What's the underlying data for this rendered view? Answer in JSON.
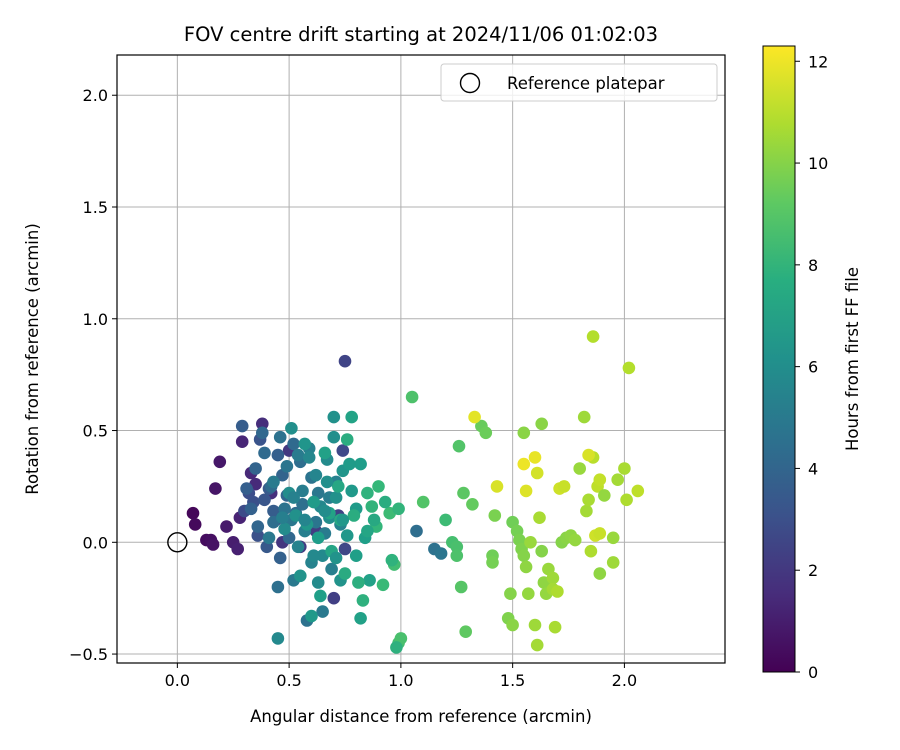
{
  "chart_data": {
    "type": "scatter",
    "title": "FOV centre drift starting at 2024/11/06 01:02:03",
    "xlabel": "Angular distance from reference (arcmin)",
    "ylabel": "Rotation from reference (arcmin)",
    "colorbar_label": "Hours from first FF file",
    "xlim": [
      -0.27,
      2.45
    ],
    "ylim": [
      -0.54,
      2.18
    ],
    "xticks": [
      "0.0",
      "0.5",
      "1.0",
      "1.5",
      "2.0"
    ],
    "yticks": [
      "−0.5",
      "0.0",
      "0.5",
      "1.0",
      "1.5",
      "2.0"
    ],
    "colorbar_range": [
      0,
      12.3
    ],
    "colorbar_ticks": [
      "0",
      "2",
      "4",
      "6",
      "8",
      "10",
      "12"
    ],
    "grid": true,
    "colormap": "viridis",
    "legend": {
      "placement": "top-right",
      "entries": [
        "Reference platepar"
      ]
    },
    "reference_point": {
      "x": 0.0,
      "y": 0.0
    },
    "points": [
      [
        0.07,
        0.13,
        0.2
      ],
      [
        0.08,
        0.08,
        0.3
      ],
      [
        0.13,
        0.01,
        0.4
      ],
      [
        0.15,
        0.01,
        0.5
      ],
      [
        0.16,
        -0.01,
        0.6
      ],
      [
        0.17,
        0.24,
        0.7
      ],
      [
        0.19,
        0.36,
        0.8
      ],
      [
        0.22,
        0.07,
        0.9
      ],
      [
        0.25,
        0.0,
        1.0
      ],
      [
        0.27,
        -0.03,
        1.1
      ],
      [
        0.28,
        0.11,
        1.2
      ],
      [
        0.29,
        0.45,
        1.3
      ],
      [
        0.33,
        0.31,
        1.4
      ],
      [
        0.35,
        0.26,
        1.5
      ],
      [
        0.38,
        0.53,
        1.6
      ],
      [
        0.42,
        0.22,
        1.7
      ],
      [
        0.44,
        0.1,
        1.8
      ],
      [
        0.47,
        0.0,
        1.9
      ],
      [
        0.5,
        0.41,
        2.0
      ],
      [
        0.55,
        -0.02,
        2.1
      ],
      [
        0.62,
        0.05,
        2.2
      ],
      [
        0.7,
        -0.25,
        2.3
      ],
      [
        0.72,
        0.12,
        2.4
      ],
      [
        0.75,
        0.81,
        2.5
      ],
      [
        0.75,
        -0.03,
        2.6
      ],
      [
        0.74,
        0.41,
        2.7
      ],
      [
        0.3,
        0.14,
        2.8
      ],
      [
        0.32,
        0.22,
        2.9
      ],
      [
        0.34,
        0.18,
        3.0
      ],
      [
        0.36,
        0.03,
        3.1
      ],
      [
        0.37,
        0.46,
        3.2
      ],
      [
        0.39,
        0.19,
        3.3
      ],
      [
        0.4,
        -0.02,
        3.4
      ],
      [
        0.41,
        0.24,
        3.5
      ],
      [
        0.43,
        0.14,
        3.6
      ],
      [
        0.45,
        0.39,
        3.7
      ],
      [
        0.46,
        -0.07,
        3.8
      ],
      [
        0.47,
        0.3,
        3.9
      ],
      [
        0.49,
        0.21,
        4.0
      ],
      [
        0.5,
        0.02,
        4.1
      ],
      [
        0.52,
        0.44,
        4.2
      ],
      [
        0.53,
        0.13,
        4.3
      ],
      [
        0.55,
        0.36,
        4.4
      ],
      [
        0.56,
        0.17,
        4.5
      ],
      [
        0.58,
        -0.35,
        4.6
      ],
      [
        0.6,
        0.29,
        4.7
      ],
      [
        0.62,
        0.09,
        4.8
      ],
      [
        0.63,
        0.22,
        4.9
      ],
      [
        0.65,
        -0.31,
        5.0
      ],
      [
        0.66,
        0.04,
        5.1
      ],
      [
        0.68,
        0.2,
        5.2
      ],
      [
        0.69,
        -0.12,
        5.3
      ],
      [
        0.71,
        0.27,
        5.4
      ],
      [
        0.73,
        0.08,
        5.5
      ],
      [
        1.07,
        0.05,
        4.4
      ],
      [
        1.15,
        -0.03,
        4.6
      ],
      [
        1.18,
        -0.05,
        4.8
      ],
      [
        0.29,
        0.52,
        3.6
      ],
      [
        0.31,
        0.24,
        3.7
      ],
      [
        0.33,
        0.15,
        3.8
      ],
      [
        0.35,
        0.33,
        3.9
      ],
      [
        0.36,
        0.07,
        4.0
      ],
      [
        0.38,
        0.49,
        4.1
      ],
      [
        0.39,
        0.4,
        4.2
      ],
      [
        0.42,
        0.25,
        4.3
      ],
      [
        0.43,
        0.09,
        4.4
      ],
      [
        0.45,
        -0.2,
        4.5
      ],
      [
        0.46,
        0.47,
        4.6
      ],
      [
        0.48,
        0.15,
        4.7
      ],
      [
        0.49,
        0.34,
        4.8
      ],
      [
        0.51,
        0.1,
        4.9
      ],
      [
        0.52,
        -0.17,
        5.0
      ],
      [
        0.54,
        0.39,
        5.1
      ],
      [
        0.56,
        0.23,
        5.2
      ],
      [
        0.57,
        0.05,
        5.3
      ],
      [
        0.59,
        0.42,
        5.4
      ],
      [
        0.6,
        -0.09,
        5.5
      ],
      [
        0.62,
        0.3,
        5.6
      ],
      [
        0.64,
        0.16,
        5.7
      ],
      [
        0.65,
        -0.06,
        5.8
      ],
      [
        0.67,
        0.37,
        5.9
      ],
      [
        0.68,
        0.11,
        6.0
      ],
      [
        0.7,
        0.47,
        6.1
      ],
      [
        0.71,
        0.2,
        6.2
      ],
      [
        0.73,
        -0.17,
        6.3
      ],
      [
        0.74,
        0.32,
        6.4
      ],
      [
        0.76,
        0.03,
        6.5
      ],
      [
        0.78,
        0.23,
        6.6
      ],
      [
        0.8,
        0.15,
        6.7
      ],
      [
        0.82,
        0.35,
        6.8
      ],
      [
        0.84,
        0.02,
        6.9
      ],
      [
        0.86,
        -0.17,
        7.0
      ],
      [
        0.45,
        -0.43,
        5.8
      ],
      [
        0.48,
        0.06,
        5.9
      ],
      [
        0.5,
        0.22,
        6.0
      ],
      [
        0.51,
        0.51,
        6.1
      ],
      [
        0.53,
        0.12,
        6.2
      ],
      [
        0.55,
        -0.15,
        6.3
      ],
      [
        0.57,
        0.44,
        6.4
      ],
      [
        0.58,
        0.08,
        6.5
      ],
      [
        0.6,
        -0.33,
        6.6
      ],
      [
        0.61,
        0.18,
        6.7
      ],
      [
        0.63,
        0.02,
        6.8
      ],
      [
        0.64,
        -0.24,
        6.9
      ],
      [
        0.66,
        0.4,
        7.0
      ],
      [
        0.68,
        0.13,
        7.1
      ],
      [
        0.69,
        -0.04,
        7.2
      ],
      [
        0.7,
        0.56,
        6.2
      ],
      [
        0.72,
        0.25,
        7.3
      ],
      [
        0.73,
        0.1,
        7.4
      ],
      [
        0.75,
        -0.14,
        7.5
      ],
      [
        0.76,
        0.46,
        7.6
      ],
      [
        0.78,
        0.56,
        7.1
      ],
      [
        0.79,
        0.12,
        7.6
      ],
      [
        0.81,
        -0.18,
        7.7
      ],
      [
        0.83,
        -0.26,
        7.8
      ],
      [
        0.85,
        0.22,
        7.9
      ],
      [
        0.87,
        0.16,
        8.0
      ],
      [
        0.89,
        0.07,
        8.1
      ],
      [
        0.9,
        0.25,
        8.2
      ],
      [
        0.92,
        -0.19,
        8.3
      ],
      [
        0.95,
        0.13,
        8.4
      ],
      [
        0.97,
        -0.1,
        8.5
      ],
      [
        0.99,
        -0.45,
        8.6
      ],
      [
        1.0,
        -0.43,
        8.7
      ],
      [
        1.05,
        0.65,
        8.8
      ],
      [
        1.1,
        0.18,
        8.9
      ],
      [
        0.41,
        0.02,
        5.0
      ],
      [
        0.43,
        0.27,
        5.1
      ],
      [
        0.47,
        0.11,
        5.3
      ],
      [
        0.52,
        0.2,
        5.4
      ],
      [
        0.54,
        -0.02,
        5.5
      ],
      [
        0.57,
        0.1,
        5.6
      ],
      [
        0.59,
        0.38,
        5.7
      ],
      [
        0.61,
        -0.06,
        5.8
      ],
      [
        0.63,
        -0.18,
        5.9
      ],
      [
        0.66,
        0.14,
        6.0
      ],
      [
        0.67,
        0.27,
        6.1
      ],
      [
        0.71,
        -0.07,
        6.3
      ],
      [
        0.74,
        0.1,
        6.5
      ],
      [
        0.77,
        0.35,
        6.7
      ],
      [
        0.8,
        -0.06,
        6.9
      ],
      [
        0.82,
        -0.34,
        7.0
      ],
      [
        0.85,
        0.05,
        7.2
      ],
      [
        0.88,
        0.1,
        7.4
      ],
      [
        0.93,
        0.18,
        7.6
      ],
      [
        0.98,
        -0.47,
        7.8
      ],
      [
        0.96,
        -0.08,
        7.9
      ],
      [
        0.99,
        0.15,
        8.0
      ],
      [
        1.2,
        0.1,
        8.4
      ],
      [
        1.23,
        0.0,
        8.6
      ],
      [
        1.25,
        -0.02,
        8.7
      ],
      [
        1.25,
        -0.06,
        8.8
      ],
      [
        1.26,
        0.43,
        8.9
      ],
      [
        1.27,
        -0.2,
        9.0
      ],
      [
        1.28,
        0.22,
        9.1
      ],
      [
        1.29,
        -0.4,
        9.2
      ],
      [
        1.32,
        0.17,
        9.3
      ],
      [
        1.36,
        0.52,
        9.4
      ],
      [
        1.38,
        0.49,
        9.5
      ],
      [
        1.41,
        -0.06,
        9.6
      ],
      [
        1.41,
        -0.09,
        9.7
      ],
      [
        1.42,
        0.12,
        9.8
      ],
      [
        1.48,
        -0.34,
        9.9
      ],
      [
        1.49,
        -0.23,
        10.0
      ],
      [
        1.5,
        -0.37,
        10.1
      ],
      [
        1.5,
        0.09,
        9.6
      ],
      [
        1.52,
        0.05,
        9.7
      ],
      [
        1.53,
        0.01,
        9.8
      ],
      [
        1.54,
        -0.03,
        9.9
      ],
      [
        1.55,
        -0.06,
        10.0
      ],
      [
        1.55,
        0.49,
        10.1
      ],
      [
        1.56,
        -0.11,
        10.2
      ],
      [
        1.57,
        -0.23,
        10.3
      ],
      [
        1.58,
        0.0,
        10.4
      ],
      [
        1.6,
        -0.37,
        10.5
      ],
      [
        1.61,
        -0.46,
        10.6
      ],
      [
        1.62,
        0.11,
        10.7
      ],
      [
        1.63,
        -0.04,
        10.0
      ],
      [
        1.63,
        0.53,
        10.1
      ],
      [
        1.64,
        -0.18,
        10.2
      ],
      [
        1.65,
        -0.23,
        10.3
      ],
      [
        1.66,
        -0.12,
        10.4
      ],
      [
        1.68,
        -0.16,
        10.5
      ],
      [
        1.68,
        -0.21,
        10.6
      ],
      [
        1.69,
        -0.38,
        10.7
      ],
      [
        1.7,
        -0.22,
        10.8
      ],
      [
        1.72,
        0.0,
        10.0
      ],
      [
        1.74,
        0.02,
        10.1
      ],
      [
        1.76,
        0.03,
        10.2
      ],
      [
        1.78,
        0.01,
        10.3
      ],
      [
        1.8,
        0.33,
        10.4
      ],
      [
        1.82,
        0.56,
        10.5
      ],
      [
        1.83,
        0.14,
        10.6
      ],
      [
        1.84,
        0.19,
        10.7
      ],
      [
        1.85,
        -0.04,
        10.8
      ],
      [
        1.86,
        0.92,
        10.9
      ],
      [
        1.86,
        0.38,
        11.0
      ],
      [
        1.88,
        0.25,
        11.1
      ],
      [
        1.89,
        -0.14,
        10.2
      ],
      [
        1.91,
        0.21,
        10.3
      ],
      [
        1.95,
        0.02,
        10.4
      ],
      [
        1.95,
        -0.09,
        10.5
      ],
      [
        1.97,
        0.28,
        10.6
      ],
      [
        2.0,
        0.33,
        10.7
      ],
      [
        2.01,
        0.19,
        10.8
      ],
      [
        2.02,
        0.78,
        10.9
      ],
      [
        2.06,
        0.23,
        11.1
      ],
      [
        1.33,
        0.56,
        11.8
      ],
      [
        1.43,
        0.25,
        11.6
      ],
      [
        1.55,
        0.35,
        12.0
      ],
      [
        1.56,
        0.23,
        11.7
      ],
      [
        1.6,
        0.38,
        11.9
      ],
      [
        1.61,
        0.31,
        11.5
      ],
      [
        1.71,
        0.24,
        11.4
      ],
      [
        1.73,
        0.25,
        11.3
      ],
      [
        1.84,
        0.39,
        11.6
      ],
      [
        1.87,
        0.03,
        11.4
      ],
      [
        1.89,
        0.28,
        11.2
      ],
      [
        1.89,
        0.04,
        11.3
      ]
    ]
  }
}
